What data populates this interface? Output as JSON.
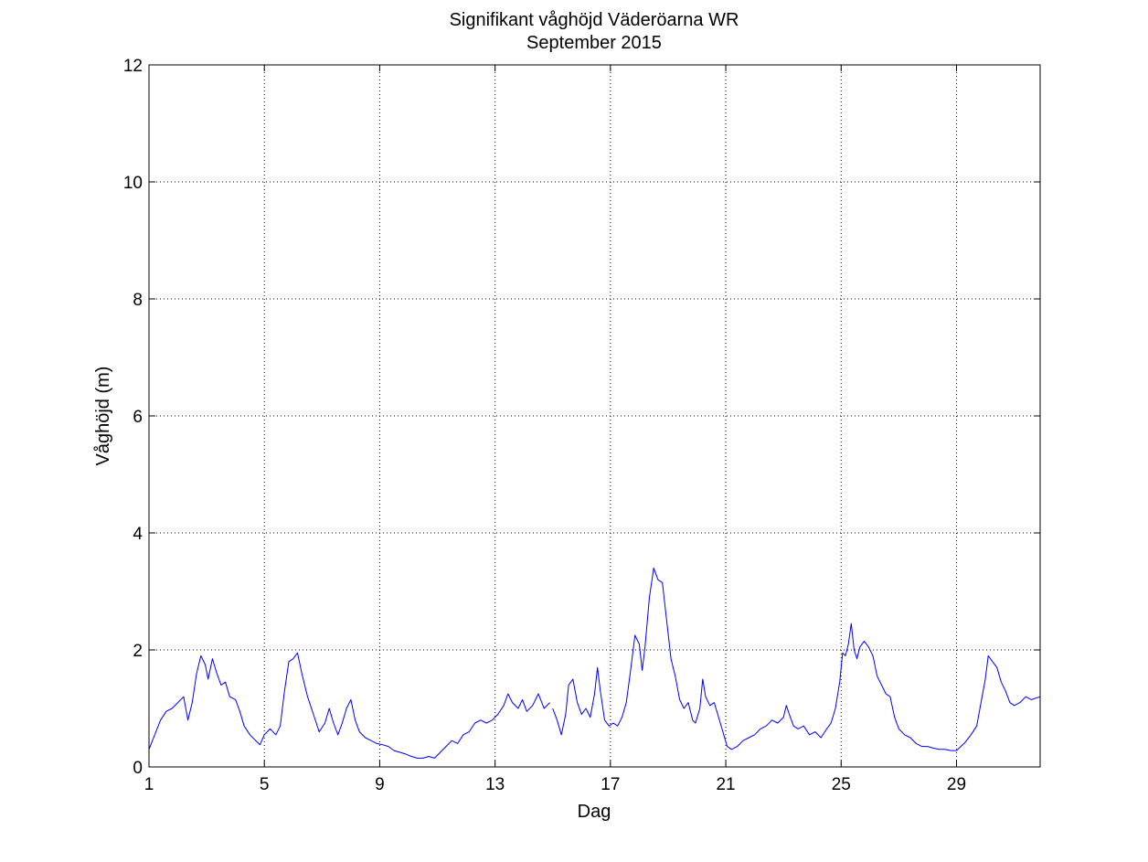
{
  "chart_data": {
    "type": "line",
    "title": "Signifikant våghöjd Väderöarna WR",
    "subtitle": "September 2015",
    "xlabel": "Dag",
    "ylabel": "Våghöjd (m)",
    "xlim": [
      1,
      31.9
    ],
    "ylim": [
      0,
      12
    ],
    "xticks": [
      1,
      5,
      9,
      13,
      17,
      21,
      25,
      29
    ],
    "yticks": [
      0,
      2,
      4,
      6,
      8,
      10,
      12
    ],
    "grid": true,
    "line_color": "#0000ff",
    "series": [
      {
        "segments": [
          [
            [
              1.0,
              0.3
            ],
            [
              1.2,
              0.55
            ],
            [
              1.4,
              0.8
            ],
            [
              1.6,
              0.95
            ],
            [
              1.8,
              1.0
            ],
            [
              2.0,
              1.1
            ],
            [
              2.2,
              1.2
            ],
            [
              2.35,
              0.8
            ],
            [
              2.5,
              1.1
            ],
            [
              2.65,
              1.6
            ],
            [
              2.8,
              1.9
            ],
            [
              2.95,
              1.75
            ],
            [
              3.05,
              1.5
            ],
            [
              3.2,
              1.85
            ],
            [
              3.35,
              1.6
            ],
            [
              3.5,
              1.4
            ],
            [
              3.65,
              1.45
            ],
            [
              3.8,
              1.2
            ],
            [
              4.0,
              1.15
            ],
            [
              4.15,
              0.95
            ],
            [
              4.3,
              0.7
            ],
            [
              4.5,
              0.55
            ],
            [
              4.7,
              0.45
            ],
            [
              4.85,
              0.38
            ],
            [
              5.0,
              0.55
            ],
            [
              5.2,
              0.65
            ],
            [
              5.4,
              0.55
            ],
            [
              5.55,
              0.7
            ],
            [
              5.7,
              1.3
            ],
            [
              5.85,
              1.8
            ],
            [
              6.0,
              1.85
            ],
            [
              6.15,
              1.95
            ],
            [
              6.3,
              1.6
            ],
            [
              6.5,
              1.2
            ],
            [
              6.7,
              0.9
            ],
            [
              6.9,
              0.6
            ],
            [
              7.1,
              0.75
            ],
            [
              7.25,
              1.0
            ],
            [
              7.4,
              0.75
            ],
            [
              7.55,
              0.55
            ],
            [
              7.7,
              0.75
            ],
            [
              7.85,
              1.0
            ],
            [
              8.0,
              1.15
            ],
            [
              8.15,
              0.8
            ],
            [
              8.3,
              0.6
            ],
            [
              8.5,
              0.5
            ],
            [
              8.7,
              0.45
            ],
            [
              8.9,
              0.4
            ],
            [
              9.1,
              0.38
            ],
            [
              9.3,
              0.35
            ],
            [
              9.5,
              0.28
            ],
            [
              9.7,
              0.25
            ],
            [
              9.9,
              0.22
            ],
            [
              10.1,
              0.18
            ],
            [
              10.3,
              0.15
            ],
            [
              10.5,
              0.15
            ],
            [
              10.7,
              0.18
            ],
            [
              10.9,
              0.15
            ],
            [
              11.1,
              0.25
            ],
            [
              11.3,
              0.35
            ],
            [
              11.5,
              0.45
            ],
            [
              11.7,
              0.4
            ],
            [
              11.9,
              0.55
            ],
            [
              12.1,
              0.6
            ],
            [
              12.3,
              0.75
            ],
            [
              12.5,
              0.8
            ],
            [
              12.7,
              0.75
            ],
            [
              12.9,
              0.8
            ],
            [
              13.1,
              0.9
            ],
            [
              13.3,
              1.05
            ],
            [
              13.45,
              1.25
            ],
            [
              13.6,
              1.1
            ],
            [
              13.8,
              1.0
            ],
            [
              13.95,
              1.15
            ],
            [
              14.1,
              0.95
            ],
            [
              14.3,
              1.05
            ],
            [
              14.5,
              1.25
            ],
            [
              14.7,
              1.0
            ],
            [
              14.9,
              1.1
            ]
          ],
          [
            [
              15.0,
              1.0
            ],
            [
              15.15,
              0.8
            ],
            [
              15.3,
              0.55
            ],
            [
              15.45,
              0.9
            ],
            [
              15.55,
              1.4
            ],
            [
              15.7,
              1.5
            ],
            [
              15.85,
              1.1
            ],
            [
              16.0,
              0.9
            ],
            [
              16.15,
              1.0
            ],
            [
              16.3,
              0.85
            ],
            [
              16.45,
              1.25
            ],
            [
              16.55,
              1.7
            ],
            [
              16.65,
              1.3
            ],
            [
              16.8,
              0.8
            ],
            [
              16.95,
              0.7
            ],
            [
              17.1,
              0.75
            ],
            [
              17.25,
              0.7
            ],
            [
              17.4,
              0.85
            ],
            [
              17.55,
              1.1
            ],
            [
              17.7,
              1.65
            ],
            [
              17.85,
              2.25
            ],
            [
              18.0,
              2.1
            ],
            [
              18.1,
              1.65
            ],
            [
              18.2,
              2.05
            ],
            [
              18.35,
              2.9
            ],
            [
              18.5,
              3.4
            ],
            [
              18.65,
              3.2
            ],
            [
              18.8,
              3.15
            ],
            [
              18.95,
              2.5
            ],
            [
              19.1,
              1.85
            ],
            [
              19.25,
              1.55
            ],
            [
              19.4,
              1.15
            ],
            [
              19.55,
              1.0
            ],
            [
              19.7,
              1.1
            ],
            [
              19.85,
              0.8
            ],
            [
              19.95,
              0.75
            ],
            [
              20.1,
              1.0
            ],
            [
              20.2,
              1.5
            ],
            [
              20.3,
              1.2
            ],
            [
              20.45,
              1.05
            ],
            [
              20.6,
              1.1
            ],
            [
              20.75,
              0.85
            ],
            [
              20.9,
              0.6
            ],
            [
              21.05,
              0.35
            ],
            [
              21.2,
              0.3
            ],
            [
              21.4,
              0.35
            ],
            [
              21.6,
              0.45
            ],
            [
              21.8,
              0.5
            ],
            [
              22.0,
              0.55
            ],
            [
              22.2,
              0.65
            ],
            [
              22.4,
              0.7
            ],
            [
              22.6,
              0.8
            ],
            [
              22.8,
              0.75
            ],
            [
              23.0,
              0.85
            ],
            [
              23.1,
              1.05
            ],
            [
              23.2,
              0.9
            ],
            [
              23.35,
              0.7
            ],
            [
              23.5,
              0.65
            ],
            [
              23.7,
              0.7
            ],
            [
              23.9,
              0.55
            ],
            [
              24.1,
              0.6
            ],
            [
              24.3,
              0.5
            ],
            [
              24.5,
              0.65
            ],
            [
              24.65,
              0.75
            ],
            [
              24.8,
              1.0
            ],
            [
              24.95,
              1.45
            ],
            [
              25.05,
              1.95
            ],
            [
              25.15,
              1.9
            ],
            [
              25.25,
              2.1
            ],
            [
              25.35,
              2.45
            ],
            [
              25.45,
              2.0
            ],
            [
              25.55,
              1.85
            ],
            [
              25.65,
              2.05
            ],
            [
              25.8,
              2.15
            ],
            [
              25.95,
              2.05
            ],
            [
              26.1,
              1.9
            ],
            [
              26.25,
              1.55
            ],
            [
              26.4,
              1.4
            ],
            [
              26.55,
              1.25
            ],
            [
              26.7,
              1.2
            ],
            [
              26.85,
              0.85
            ],
            [
              27.0,
              0.65
            ],
            [
              27.2,
              0.55
            ],
            [
              27.4,
              0.5
            ],
            [
              27.6,
              0.4
            ],
            [
              27.8,
              0.35
            ],
            [
              28.0,
              0.35
            ],
            [
              28.2,
              0.32
            ],
            [
              28.4,
              0.3
            ],
            [
              28.6,
              0.3
            ],
            [
              28.8,
              0.28
            ],
            [
              29.0,
              0.28
            ],
            [
              29.15,
              0.35
            ],
            [
              29.3,
              0.42
            ],
            [
              29.5,
              0.55
            ],
            [
              29.7,
              0.7
            ],
            [
              29.85,
              1.1
            ],
            [
              30.0,
              1.5
            ],
            [
              30.1,
              1.9
            ],
            [
              30.25,
              1.8
            ],
            [
              30.4,
              1.7
            ],
            [
              30.55,
              1.45
            ],
            [
              30.7,
              1.3
            ],
            [
              30.85,
              1.1
            ],
            [
              31.0,
              1.05
            ],
            [
              31.2,
              1.1
            ],
            [
              31.4,
              1.2
            ],
            [
              31.6,
              1.15
            ],
            [
              31.9,
              1.2
            ]
          ]
        ]
      }
    ]
  }
}
